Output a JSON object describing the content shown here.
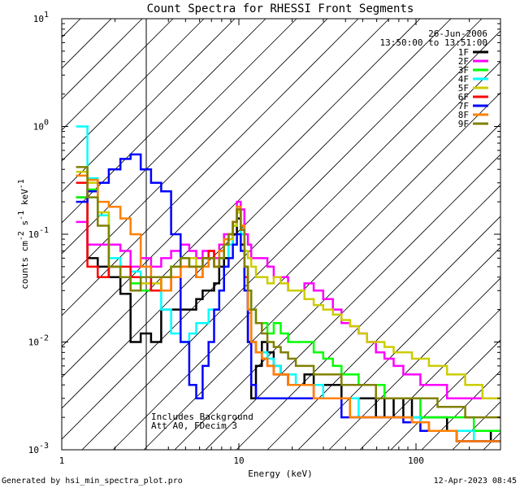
{
  "chart_data": {
    "type": "line",
    "title": "Count Spectra for RHESSI Front Segments",
    "xlabel": "Energy (keV)",
    "ylabel": "counts cm^-2 s^-1 keV^-1",
    "ylabel_parts": {
      "base": "counts cm",
      "e1": "-2",
      "s": " s",
      "e2": "-1",
      "k": " keV",
      "e3": "-1"
    },
    "x_scale": "log",
    "y_scale": "log",
    "xlim": [
      1,
      300
    ],
    "ylim": [
      0.001,
      10
    ],
    "x_ticks": [
      {
        "value": 1,
        "label": "1"
      },
      {
        "value": 10,
        "label": "10"
      },
      {
        "value": 100,
        "label": "100"
      }
    ],
    "y_ticks": [
      {
        "value": 0.001,
        "base": "10",
        "exp": "-3"
      },
      {
        "value": 0.01,
        "base": "10",
        "exp": "-2"
      },
      {
        "value": 0.1,
        "base": "10",
        "exp": "-1"
      },
      {
        "value": 1,
        "base": "10",
        "exp": "0"
      },
      {
        "value": 10,
        "base": "10",
        "exp": "1"
      }
    ],
    "hatched_region": {
      "x_from": 1,
      "x_to": 3
    },
    "annotations": {
      "date": "26-Jun-2006",
      "time_range": "13:50:00 to 13:51:00",
      "background": "Includes Background",
      "attenuator": "Att A0, FDecim 3",
      "generated_by": "Generated by hsi_min_spectra_plot.pro",
      "timestamp": "12-Apr-2023 08:45"
    },
    "legend_position": "top-right",
    "x": [
      1.3,
      1.5,
      1.7,
      2.0,
      2.3,
      2.6,
      3.0,
      3.4,
      3.9,
      4.4,
      5.0,
      5.5,
      6.0,
      6.5,
      7.0,
      7.5,
      8.0,
      8.5,
      9.0,
      9.5,
      10.0,
      10.5,
      11.0,
      11.5,
      12.0,
      13.0,
      14.0,
      15.0,
      16.5,
      18.0,
      20.0,
      22.0,
      25.0,
      28.0,
      32.0,
      36.0,
      40.0,
      45.0,
      50.0,
      56.0,
      63.0,
      70.0,
      80.0,
      90.0,
      100.0,
      112.0,
      125.0,
      140.0,
      160.0,
      180.0,
      200.0,
      225.0,
      250.0,
      280.0
    ],
    "series": [
      {
        "name": "1F",
        "color": "#000000",
        "values": [
          0.22,
          0.06,
          0.05,
          0.04,
          0.028,
          0.01,
          0.012,
          0.01,
          0.02,
          0.02,
          0.02,
          0.02,
          0.025,
          0.03,
          0.03,
          0.035,
          0.05,
          0.06,
          0.08,
          0.1,
          0.14,
          0.08,
          0.04,
          0.01,
          0.003,
          0.006,
          0.01,
          0.008,
          0.006,
          0.005,
          0.004,
          0.004,
          0.005,
          0.004,
          0.004,
          0.004,
          0.003,
          0.003,
          0.003,
          0.003,
          0.002,
          0.003,
          0.002,
          0.003,
          0.002,
          0.002,
          0.002,
          0.002,
          0.0015,
          0.0015,
          0.0015,
          0.0015,
          0.0015,
          0.0012
        ]
      },
      {
        "name": "2F",
        "color": "#ff00ff",
        "values": [
          0.13,
          0.08,
          0.08,
          0.08,
          0.07,
          0.05,
          0.06,
          0.05,
          0.06,
          0.07,
          0.08,
          0.07,
          0.06,
          0.07,
          0.07,
          0.06,
          0.08,
          0.1,
          0.1,
          0.13,
          0.2,
          0.17,
          0.1,
          0.08,
          0.06,
          0.06,
          0.06,
          0.05,
          0.04,
          0.04,
          0.03,
          0.03,
          0.035,
          0.03,
          0.025,
          0.02,
          0.015,
          0.014,
          0.012,
          0.01,
          0.008,
          0.007,
          0.006,
          0.005,
          0.005,
          0.004,
          0.004,
          0.004,
          0.003,
          0.003,
          0.003,
          0.003,
          0.003,
          0.003
        ]
      },
      {
        "name": "3F",
        "color": "#00ff00",
        "values": [
          0.22,
          0.26,
          0.15,
          0.05,
          0.04,
          0.035,
          0.03,
          0.03,
          0.04,
          0.05,
          0.06,
          0.05,
          0.05,
          0.06,
          0.06,
          0.05,
          0.06,
          0.08,
          0.1,
          0.12,
          0.16,
          0.1,
          0.05,
          0.03,
          0.02,
          0.015,
          0.015,
          0.012,
          0.015,
          0.012,
          0.01,
          0.01,
          0.01,
          0.008,
          0.007,
          0.006,
          0.005,
          0.005,
          0.004,
          0.004,
          0.004,
          0.003,
          0.003,
          0.003,
          0.003,
          0.002,
          0.002,
          0.002,
          0.002,
          0.002,
          0.002,
          0.0015,
          0.0015,
          0.0015
        ]
      },
      {
        "name": "4F",
        "color": "#00ffff",
        "values": [
          1.0,
          0.33,
          0.15,
          0.06,
          0.05,
          0.045,
          0.04,
          0.03,
          0.02,
          0.012,
          0.01,
          0.012,
          0.015,
          0.015,
          0.02,
          0.02,
          0.03,
          0.05,
          0.08,
          0.12,
          0.18,
          0.1,
          0.04,
          0.02,
          0.01,
          0.008,
          0.008,
          0.007,
          0.006,
          0.005,
          0.005,
          0.004,
          0.004,
          0.004,
          0.003,
          0.003,
          0.003,
          0.003,
          0.002,
          0.002,
          0.002,
          0.002,
          0.002,
          0.002,
          0.002,
          0.0015,
          0.0015,
          0.0015,
          0.0015,
          0.0015,
          0.0015,
          0.0012,
          0.0012,
          0.0012
        ]
      },
      {
        "name": "5F",
        "color": "#cccc00",
        "values": [
          0.38,
          0.3,
          0.16,
          0.05,
          0.04,
          0.03,
          0.035,
          0.035,
          0.04,
          0.05,
          0.05,
          0.06,
          0.05,
          0.06,
          0.06,
          0.05,
          0.06,
          0.08,
          0.09,
          0.12,
          0.16,
          0.12,
          0.07,
          0.06,
          0.05,
          0.04,
          0.04,
          0.035,
          0.04,
          0.035,
          0.03,
          0.03,
          0.025,
          0.022,
          0.02,
          0.018,
          0.016,
          0.014,
          0.012,
          0.01,
          0.01,
          0.009,
          0.008,
          0.008,
          0.007,
          0.007,
          0.006,
          0.006,
          0.005,
          0.005,
          0.004,
          0.004,
          0.003,
          0.003
        ]
      },
      {
        "name": "6F",
        "color": "#ff0000",
        "values": [
          0.3,
          0.05,
          0.04,
          0.05,
          0.05,
          0.04,
          0.04,
          0.03,
          0.03,
          0.04,
          0.05,
          0.05,
          0.04,
          0.06,
          0.07,
          0.05,
          0.07,
          0.09,
          0.1,
          0.13,
          0.17,
          0.11,
          0.04,
          0.02,
          0.01,
          0.008,
          0.007,
          0.006,
          0.005,
          0.005,
          0.004,
          0.004,
          0.004,
          0.003,
          0.003,
          0.003,
          0.003,
          0.002,
          0.002,
          0.002,
          0.002,
          0.002,
          0.002,
          0.002,
          0.0018,
          0.0018,
          0.0015,
          0.0015,
          0.0015,
          0.0012,
          0.0012,
          0.0012,
          0.0012,
          0.0012
        ]
      },
      {
        "name": "7F",
        "color": "#0000ff",
        "values": [
          0.2,
          0.25,
          0.3,
          0.4,
          0.5,
          0.55,
          0.4,
          0.3,
          0.25,
          0.1,
          0.01,
          0.004,
          0.003,
          0.006,
          0.01,
          0.02,
          0.03,
          0.05,
          0.06,
          0.08,
          0.1,
          0.07,
          0.03,
          0.01,
          0.004,
          0.003,
          0.003,
          0.003,
          0.003,
          0.003,
          0.003,
          0.003,
          0.003,
          0.003,
          0.003,
          0.003,
          0.002,
          0.002,
          0.002,
          0.002,
          0.002,
          0.002,
          0.002,
          0.0018,
          0.0018,
          0.0015,
          0.0015,
          0.0015,
          0.0015,
          0.0012,
          0.0012,
          0.0012,
          0.0012,
          0.0012
        ]
      },
      {
        "name": "8F",
        "color": "#ff8000",
        "values": [
          0.35,
          0.32,
          0.2,
          0.18,
          0.14,
          0.1,
          0.05,
          0.04,
          0.03,
          0.04,
          0.05,
          0.05,
          0.04,
          0.05,
          0.06,
          0.05,
          0.07,
          0.09,
          0.1,
          0.13,
          0.18,
          0.12,
          0.05,
          0.02,
          0.01,
          0.008,
          0.007,
          0.006,
          0.005,
          0.005,
          0.004,
          0.004,
          0.004,
          0.003,
          0.003,
          0.003,
          0.003,
          0.002,
          0.002,
          0.002,
          0.002,
          0.002,
          0.002,
          0.002,
          0.0018,
          0.0018,
          0.0015,
          0.0015,
          0.0015,
          0.0012,
          0.0012,
          0.0012,
          0.0012,
          0.0012
        ]
      },
      {
        "name": "9F",
        "color": "#808000",
        "values": [
          0.42,
          0.22,
          0.12,
          0.05,
          0.04,
          0.03,
          0.04,
          0.04,
          0.04,
          0.05,
          0.06,
          0.05,
          0.05,
          0.06,
          0.06,
          0.05,
          0.06,
          0.08,
          0.1,
          0.13,
          0.17,
          0.11,
          0.05,
          0.03,
          0.02,
          0.015,
          0.012,
          0.01,
          0.009,
          0.008,
          0.007,
          0.006,
          0.006,
          0.005,
          0.005,
          0.005,
          0.004,
          0.004,
          0.004,
          0.004,
          0.003,
          0.003,
          0.003,
          0.003,
          0.003,
          0.003,
          0.003,
          0.0025,
          0.0025,
          0.0025,
          0.002,
          0.002,
          0.002,
          0.002
        ]
      }
    ]
  }
}
